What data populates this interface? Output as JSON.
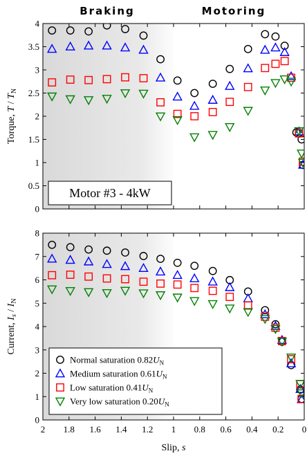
{
  "header": {
    "braking_label": "Braking",
    "motoring_label": "Motoring"
  },
  "chart_data": [
    {
      "type": "scatter",
      "ylabel": "Torque, T / T_N",
      "xlim": [
        2,
        0
      ],
      "ylim": [
        0,
        4
      ],
      "x_reversed": true,
      "yticks": [
        "0",
        "0.5",
        "1",
        "1.5",
        "2",
        "2.5",
        "3",
        "3.5",
        "4"
      ],
      "annotation": "Motor #3 - 4kW",
      "shaded_region": {
        "from": 2,
        "to": 1,
        "meaning": "Braking"
      },
      "series": [
        {
          "name": "Normal saturation 0.82U_N",
          "marker": "circle",
          "color": "#000000",
          "points": [
            [
              1.93,
              3.85
            ],
            [
              1.79,
              3.85
            ],
            [
              1.65,
              3.83
            ],
            [
              1.51,
              3.96
            ],
            [
              1.37,
              3.88
            ],
            [
              1.23,
              3.74
            ],
            [
              1.1,
              3.23
            ],
            [
              0.97,
              2.77
            ],
            [
              0.84,
              2.5
            ],
            [
              0.7,
              2.7
            ],
            [
              0.57,
              3.02
            ],
            [
              0.43,
              3.45
            ],
            [
              0.3,
              3.77
            ],
            [
              0.22,
              3.72
            ],
            [
              0.15,
              3.52
            ],
            [
              0.06,
              1.65
            ],
            [
              0.02,
              1.5
            ],
            [
              0.01,
              0.95
            ]
          ]
        },
        {
          "name": "Medium saturation 0.61U_N",
          "marker": "triangle-up",
          "color": "#0000ff",
          "points": [
            [
              1.93,
              3.45
            ],
            [
              1.79,
              3.5
            ],
            [
              1.65,
              3.52
            ],
            [
              1.51,
              3.52
            ],
            [
              1.37,
              3.48
            ],
            [
              1.23,
              3.43
            ],
            [
              1.1,
              2.83
            ],
            [
              0.97,
              2.42
            ],
            [
              0.84,
              2.22
            ],
            [
              0.7,
              2.35
            ],
            [
              0.57,
              2.65
            ],
            [
              0.43,
              3.03
            ],
            [
              0.3,
              3.43
            ],
            [
              0.22,
              3.48
            ],
            [
              0.15,
              3.38
            ],
            [
              0.1,
              2.86
            ],
            [
              0.04,
              1.67
            ],
            [
              0.01,
              0.95
            ]
          ]
        },
        {
          "name": "Low saturation 0.41U_N",
          "marker": "square",
          "color": "#ff0000",
          "points": [
            [
              1.93,
              2.73
            ],
            [
              1.79,
              2.79
            ],
            [
              1.65,
              2.78
            ],
            [
              1.51,
              2.8
            ],
            [
              1.37,
              2.84
            ],
            [
              1.23,
              2.82
            ],
            [
              1.1,
              2.3
            ],
            [
              0.97,
              2.05
            ],
            [
              0.84,
              2.0
            ],
            [
              0.7,
              2.09
            ],
            [
              0.57,
              2.31
            ],
            [
              0.43,
              2.63
            ],
            [
              0.3,
              3.04
            ],
            [
              0.22,
              3.13
            ],
            [
              0.15,
              3.19
            ],
            [
              0.1,
              2.83
            ],
            [
              0.04,
              1.63
            ],
            [
              0.01,
              1.02
            ]
          ]
        },
        {
          "name": "Very low saturation 0.20U_N",
          "marker": "triangle-down",
          "color": "#008000",
          "points": [
            [
              1.93,
              2.43
            ],
            [
              1.79,
              2.37
            ],
            [
              1.65,
              2.35
            ],
            [
              1.51,
              2.38
            ],
            [
              1.37,
              2.5
            ],
            [
              1.23,
              2.49
            ],
            [
              1.1,
              2.0
            ],
            [
              0.97,
              1.92
            ],
            [
              0.84,
              1.55
            ],
            [
              0.7,
              1.6
            ],
            [
              0.57,
              1.77
            ],
            [
              0.43,
              2.12
            ],
            [
              0.3,
              2.56
            ],
            [
              0.22,
              2.72
            ],
            [
              0.15,
              2.8
            ],
            [
              0.1,
              2.75
            ],
            [
              0.04,
              1.68
            ],
            [
              0.02,
              1.2
            ],
            [
              0.01,
              1.0
            ]
          ]
        }
      ]
    },
    {
      "type": "scatter",
      "xlabel": "Slip, s",
      "ylabel": "Current, I_s / I_N",
      "xlim": [
        2,
        0
      ],
      "ylim": [
        0,
        8
      ],
      "x_reversed": true,
      "xticks": [
        "2",
        "1.8",
        "1.6",
        "1.4",
        "1.2",
        "1",
        "0.8",
        "0.6",
        "0.4",
        "0.2",
        "0"
      ],
      "yticks": [
        "0",
        "1",
        "2",
        "3",
        "4",
        "5",
        "6",
        "7",
        "8"
      ],
      "legend_position": "bottom-left",
      "shaded_region": {
        "from": 2,
        "to": 1,
        "meaning": "Braking"
      },
      "series": [
        {
          "name": "Normal saturation 0.82U_N",
          "marker": "circle",
          "color": "#000000",
          "points": [
            [
              1.93,
              7.5
            ],
            [
              1.79,
              7.4
            ],
            [
              1.65,
              7.3
            ],
            [
              1.51,
              7.25
            ],
            [
              1.37,
              7.17
            ],
            [
              1.23,
              7.02
            ],
            [
              1.1,
              6.9
            ],
            [
              0.97,
              6.73
            ],
            [
              0.84,
              6.6
            ],
            [
              0.7,
              6.38
            ],
            [
              0.57,
              5.99
            ],
            [
              0.43,
              5.5
            ],
            [
              0.3,
              4.7
            ],
            [
              0.22,
              4.1
            ],
            [
              0.17,
              3.35
            ],
            [
              0.1,
              2.35
            ],
            [
              0.03,
              1.3
            ],
            [
              0.02,
              0.9
            ]
          ]
        },
        {
          "name": "Medium saturation 0.61U_N",
          "marker": "triangle-up",
          "color": "#0000ff",
          "points": [
            [
              1.93,
              6.9
            ],
            [
              1.79,
              6.85
            ],
            [
              1.65,
              6.78
            ],
            [
              1.51,
              6.67
            ],
            [
              1.37,
              6.58
            ],
            [
              1.23,
              6.5
            ],
            [
              1.1,
              6.35
            ],
            [
              0.97,
              6.2
            ],
            [
              0.84,
              6.06
            ],
            [
              0.7,
              5.92
            ],
            [
              0.57,
              5.68
            ],
            [
              0.43,
              5.2
            ],
            [
              0.3,
              4.52
            ],
            [
              0.22,
              4.02
            ],
            [
              0.17,
              3.42
            ],
            [
              0.1,
              2.42
            ],
            [
              0.03,
              1.32
            ],
            [
              0.02,
              0.88
            ]
          ]
        },
        {
          "name": "Low saturation 0.41U_N",
          "marker": "square",
          "color": "#ff0000",
          "points": [
            [
              1.93,
              6.2
            ],
            [
              1.79,
              6.22
            ],
            [
              1.65,
              6.14
            ],
            [
              1.51,
              6.06
            ],
            [
              1.37,
              6.03
            ],
            [
              1.23,
              5.92
            ],
            [
              1.1,
              5.84
            ],
            [
              0.97,
              5.8
            ],
            [
              0.84,
              5.65
            ],
            [
              0.7,
              5.53
            ],
            [
              0.57,
              5.27
            ],
            [
              0.43,
              4.9
            ],
            [
              0.3,
              4.42
            ],
            [
              0.22,
              3.95
            ],
            [
              0.17,
              3.38
            ],
            [
              0.1,
              2.6
            ],
            [
              0.03,
              1.53
            ],
            [
              0.02,
              0.9
            ]
          ]
        },
        {
          "name": "Very low saturation 0.20U_N",
          "marker": "triangle-down",
          "color": "#008000",
          "points": [
            [
              1.93,
              5.6
            ],
            [
              1.79,
              5.53
            ],
            [
              1.65,
              5.48
            ],
            [
              1.51,
              5.44
            ],
            [
              1.37,
              5.54
            ],
            [
              1.23,
              5.43
            ],
            [
              1.1,
              5.35
            ],
            [
              0.97,
              5.25
            ],
            [
              0.84,
              5.1
            ],
            [
              0.7,
              4.97
            ],
            [
              0.57,
              4.78
            ],
            [
              0.43,
              4.63
            ],
            [
              0.3,
              4.33
            ],
            [
              0.22,
              3.9
            ],
            [
              0.17,
              3.36
            ],
            [
              0.1,
              2.68
            ],
            [
              0.03,
              1.55
            ],
            [
              0.02,
              1.15
            ]
          ]
        }
      ]
    }
  ]
}
